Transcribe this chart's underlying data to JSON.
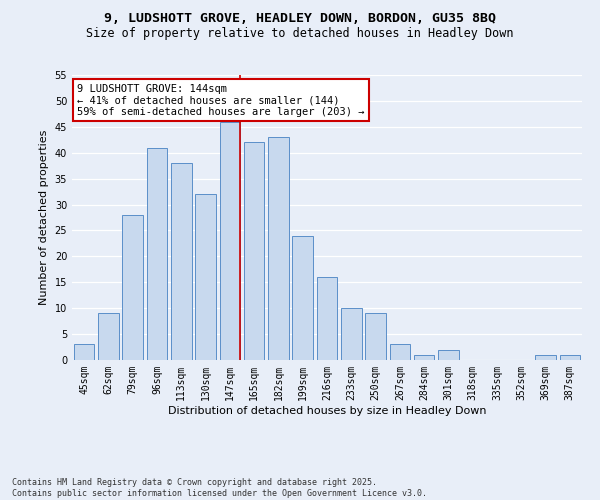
{
  "title_line1": "9, LUDSHOTT GROVE, HEADLEY DOWN, BORDON, GU35 8BQ",
  "title_line2": "Size of property relative to detached houses in Headley Down",
  "xlabel": "Distribution of detached houses by size in Headley Down",
  "ylabel": "Number of detached properties",
  "categories": [
    "45sqm",
    "62sqm",
    "79sqm",
    "96sqm",
    "113sqm",
    "130sqm",
    "147sqm",
    "165sqm",
    "182sqm",
    "199sqm",
    "216sqm",
    "233sqm",
    "250sqm",
    "267sqm",
    "284sqm",
    "301sqm",
    "318sqm",
    "335sqm",
    "352sqm",
    "369sqm",
    "387sqm"
  ],
  "values": [
    3,
    9,
    28,
    41,
    38,
    32,
    46,
    42,
    43,
    24,
    16,
    10,
    9,
    3,
    1,
    2,
    0,
    0,
    0,
    1,
    1
  ],
  "bar_color": "#c8d9ee",
  "bar_edge_color": "#5b8fc9",
  "highlight_index": 6,
  "highlight_line_color": "#cc0000",
  "annotation_text": "9 LUDSHOTT GROVE: 144sqm\n← 41% of detached houses are smaller (144)\n59% of semi-detached houses are larger (203) →",
  "annotation_box_color": "#ffffff",
  "annotation_box_edge": "#cc0000",
  "background_color": "#e8eef8",
  "grid_color": "#ffffff",
  "ylim": [
    0,
    55
  ],
  "yticks": [
    0,
    5,
    10,
    15,
    20,
    25,
    30,
    35,
    40,
    45,
    50,
    55
  ],
  "footer_text": "Contains HM Land Registry data © Crown copyright and database right 2025.\nContains public sector information licensed under the Open Government Licence v3.0.",
  "title_fontsize": 9.5,
  "subtitle_fontsize": 8.5,
  "axis_label_fontsize": 8,
  "tick_fontsize": 7,
  "annotation_fontsize": 7.5,
  "footer_fontsize": 6
}
